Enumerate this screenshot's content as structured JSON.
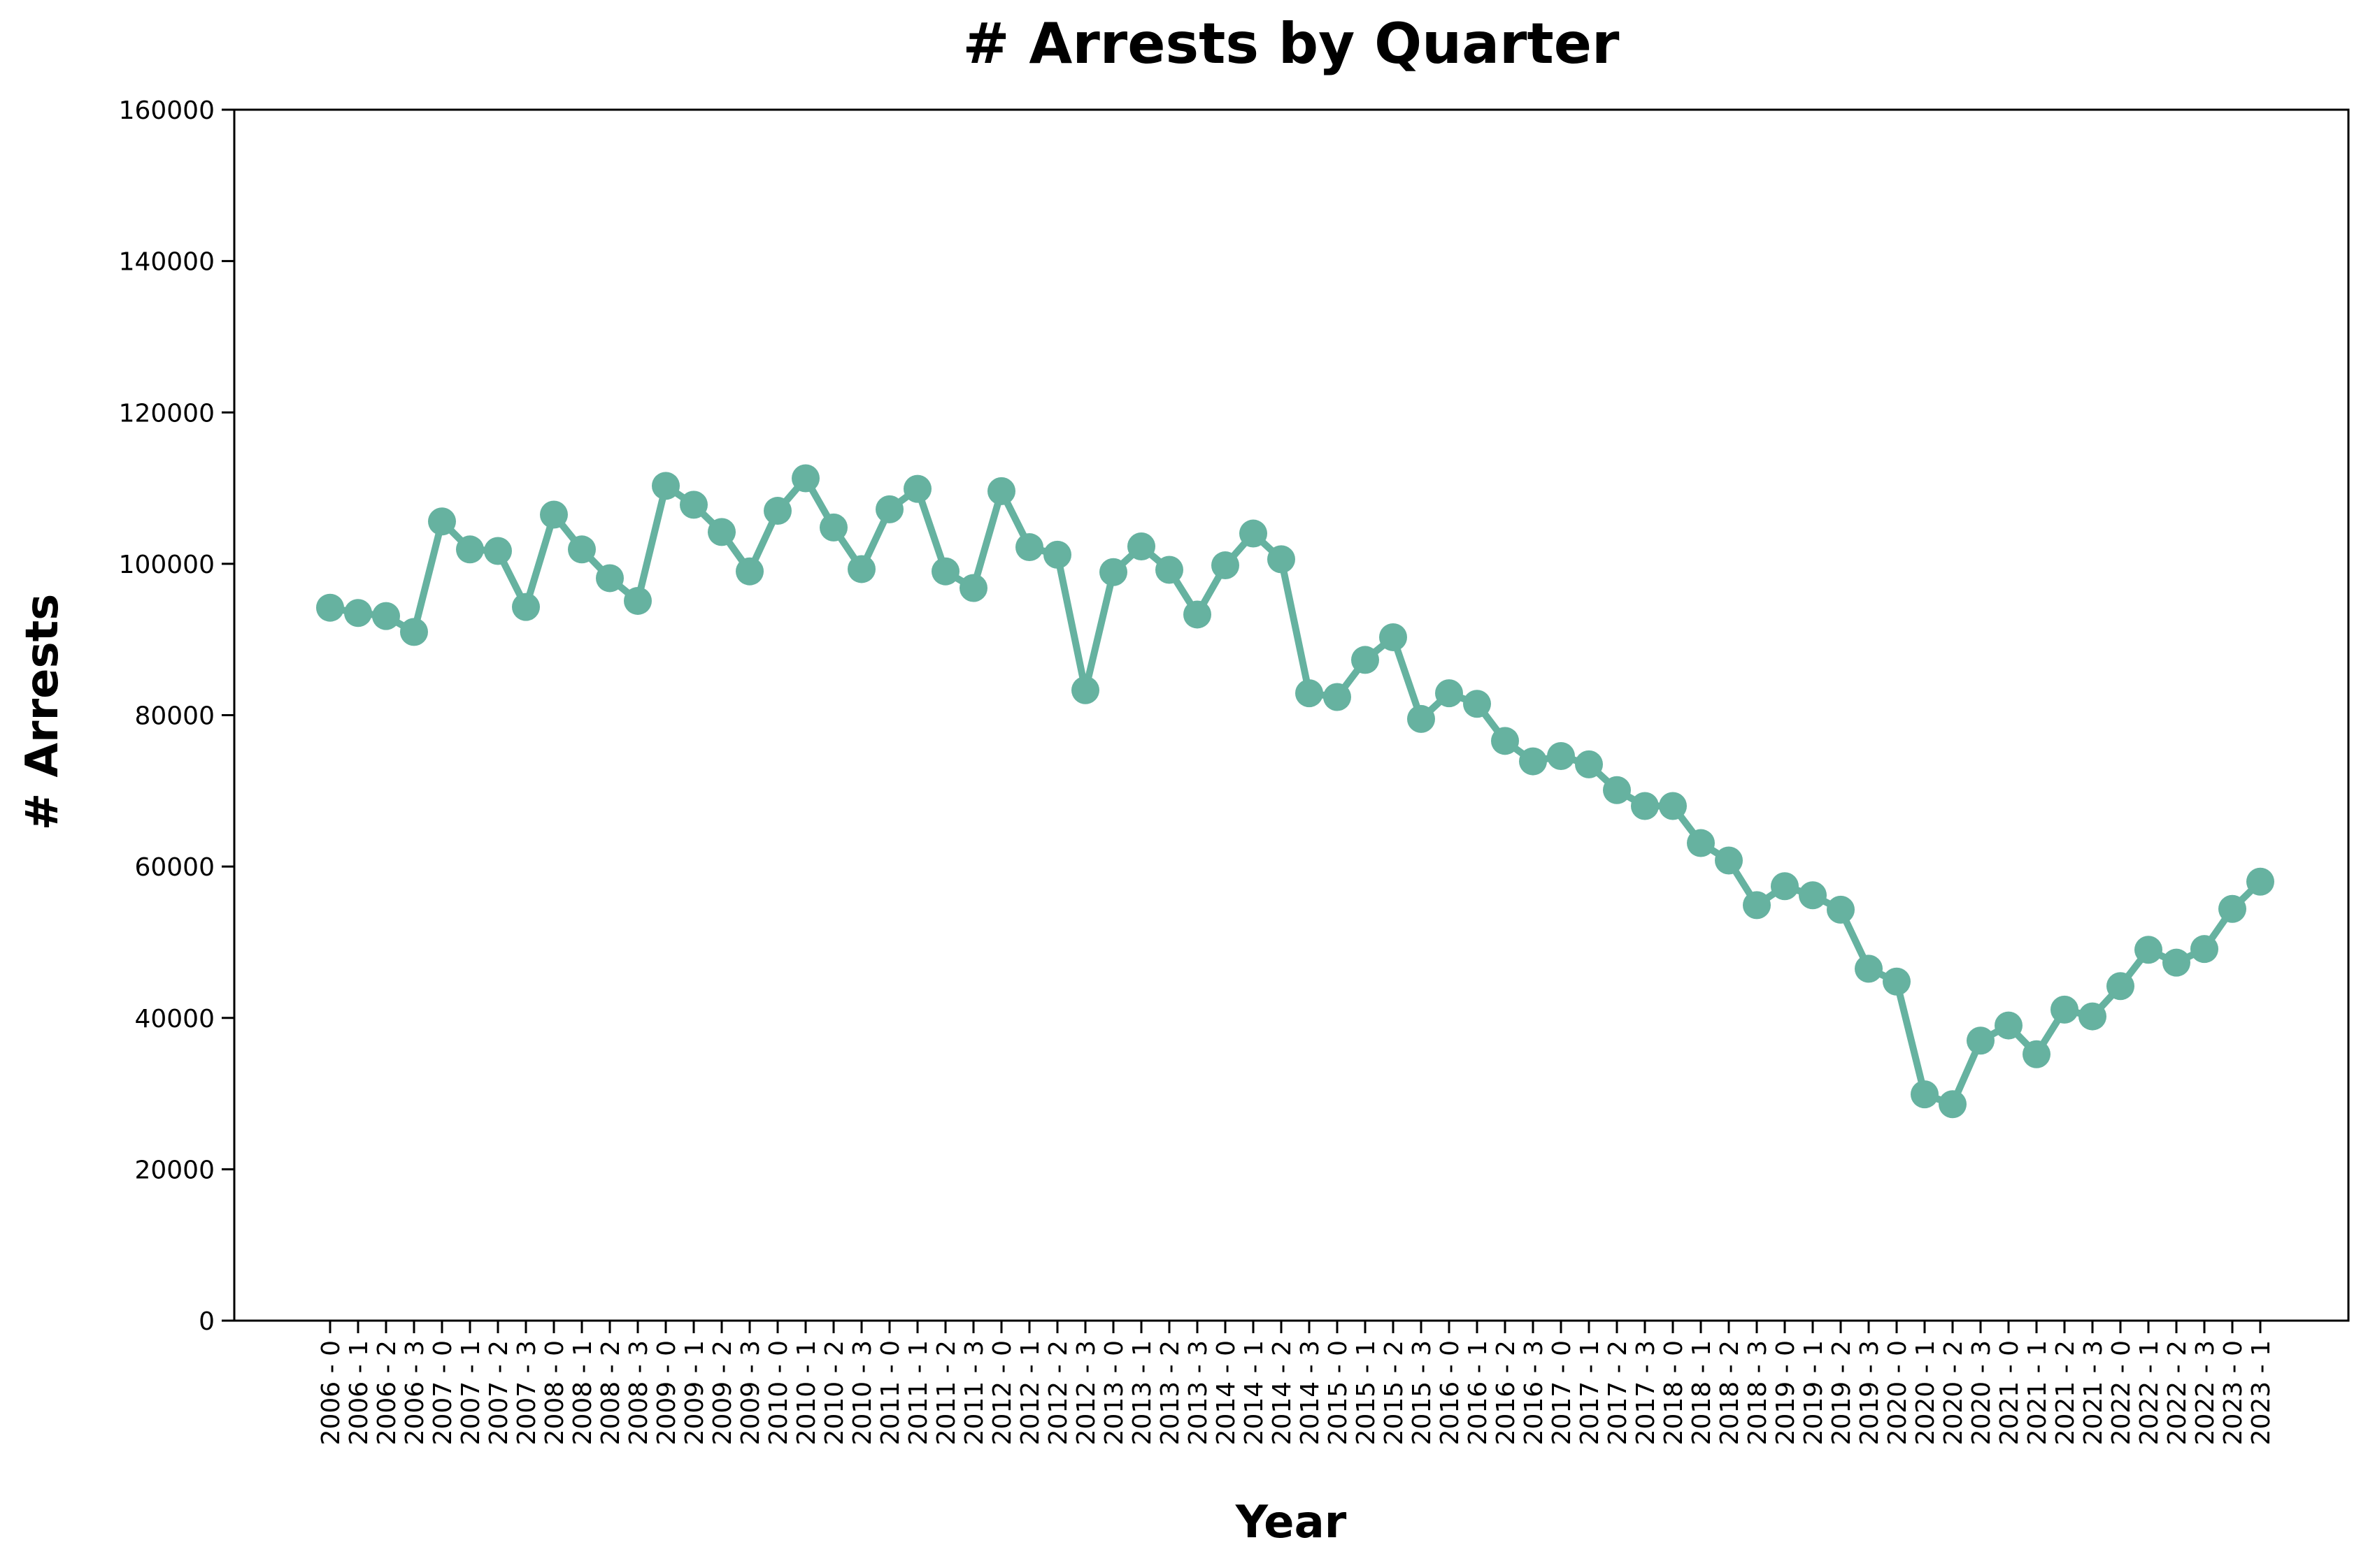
{
  "chart_data": {
    "type": "line",
    "title": "# Arrests by Quarter",
    "xlabel": "Year",
    "ylabel": "# Arrests",
    "ylim": [
      0,
      160000
    ],
    "yticks": [
      0,
      20000,
      40000,
      60000,
      80000,
      100000,
      120000,
      140000,
      160000
    ],
    "grid": false,
    "legend": "none",
    "categories": [
      "2006 - 0",
      "2006 - 1",
      "2006 - 2",
      "2006 - 3",
      "2007 - 0",
      "2007 - 1",
      "2007 - 2",
      "2007 - 3",
      "2008 - 0",
      "2008 - 1",
      "2008 - 2",
      "2008 - 3",
      "2009 - 0",
      "2009 - 1",
      "2009 - 2",
      "2009 - 3",
      "2010 - 0",
      "2010 - 1",
      "2010 - 2",
      "2010 - 3",
      "2011 - 0",
      "2011 - 1",
      "2011 - 2",
      "2011 - 3",
      "2012 - 0",
      "2012 - 1",
      "2012 - 2",
      "2012 - 3",
      "2013 - 0",
      "2013 - 1",
      "2013 - 2",
      "2013 - 3",
      "2014 - 0",
      "2014 - 1",
      "2014 - 2",
      "2014 - 3",
      "2015 - 0",
      "2015 - 1",
      "2015 - 2",
      "2015 - 3",
      "2016 - 0",
      "2016 - 1",
      "2016 - 2",
      "2016 - 3",
      "2017 - 0",
      "2017 - 1",
      "2017 - 2",
      "2017 - 3",
      "2018 - 0",
      "2018 - 1",
      "2018 - 2",
      "2018 - 3",
      "2019 - 0",
      "2019 - 1",
      "2019 - 2",
      "2019 - 3",
      "2020 - 0",
      "2020 - 1",
      "2020 - 2",
      "2020 - 3",
      "2021 - 0",
      "2021 - 1",
      "2021 - 2",
      "2021 - 3",
      "2022 - 0",
      "2022 - 1",
      "2022 - 2",
      "2022 - 3",
      "2023 - 0",
      "2023 - 1"
    ],
    "series": [
      {
        "color": "#66b2a0",
        "values": [
          94200,
          93500,
          93100,
          91000,
          105600,
          101900,
          101700,
          94300,
          106500,
          101900,
          98100,
          95100,
          110300,
          107800,
          104200,
          99000,
          107000,
          111300,
          104800,
          99300,
          107200,
          109900,
          99000,
          96800,
          109600,
          102200,
          101200,
          83300,
          98900,
          102300,
          99200,
          93300,
          99800,
          104000,
          100600,
          82900,
          82400,
          87300,
          90300,
          79500,
          82900,
          81500,
          76600,
          73900,
          74600,
          73500,
          70100,
          68000,
          68000,
          63100,
          60800,
          54900,
          57400,
          56200,
          54300,
          46500,
          44800,
          29900,
          28600,
          37000,
          39000,
          35200,
          41100,
          40200,
          44200,
          49000,
          47300,
          49100,
          54400,
          58000
        ]
      }
    ]
  }
}
